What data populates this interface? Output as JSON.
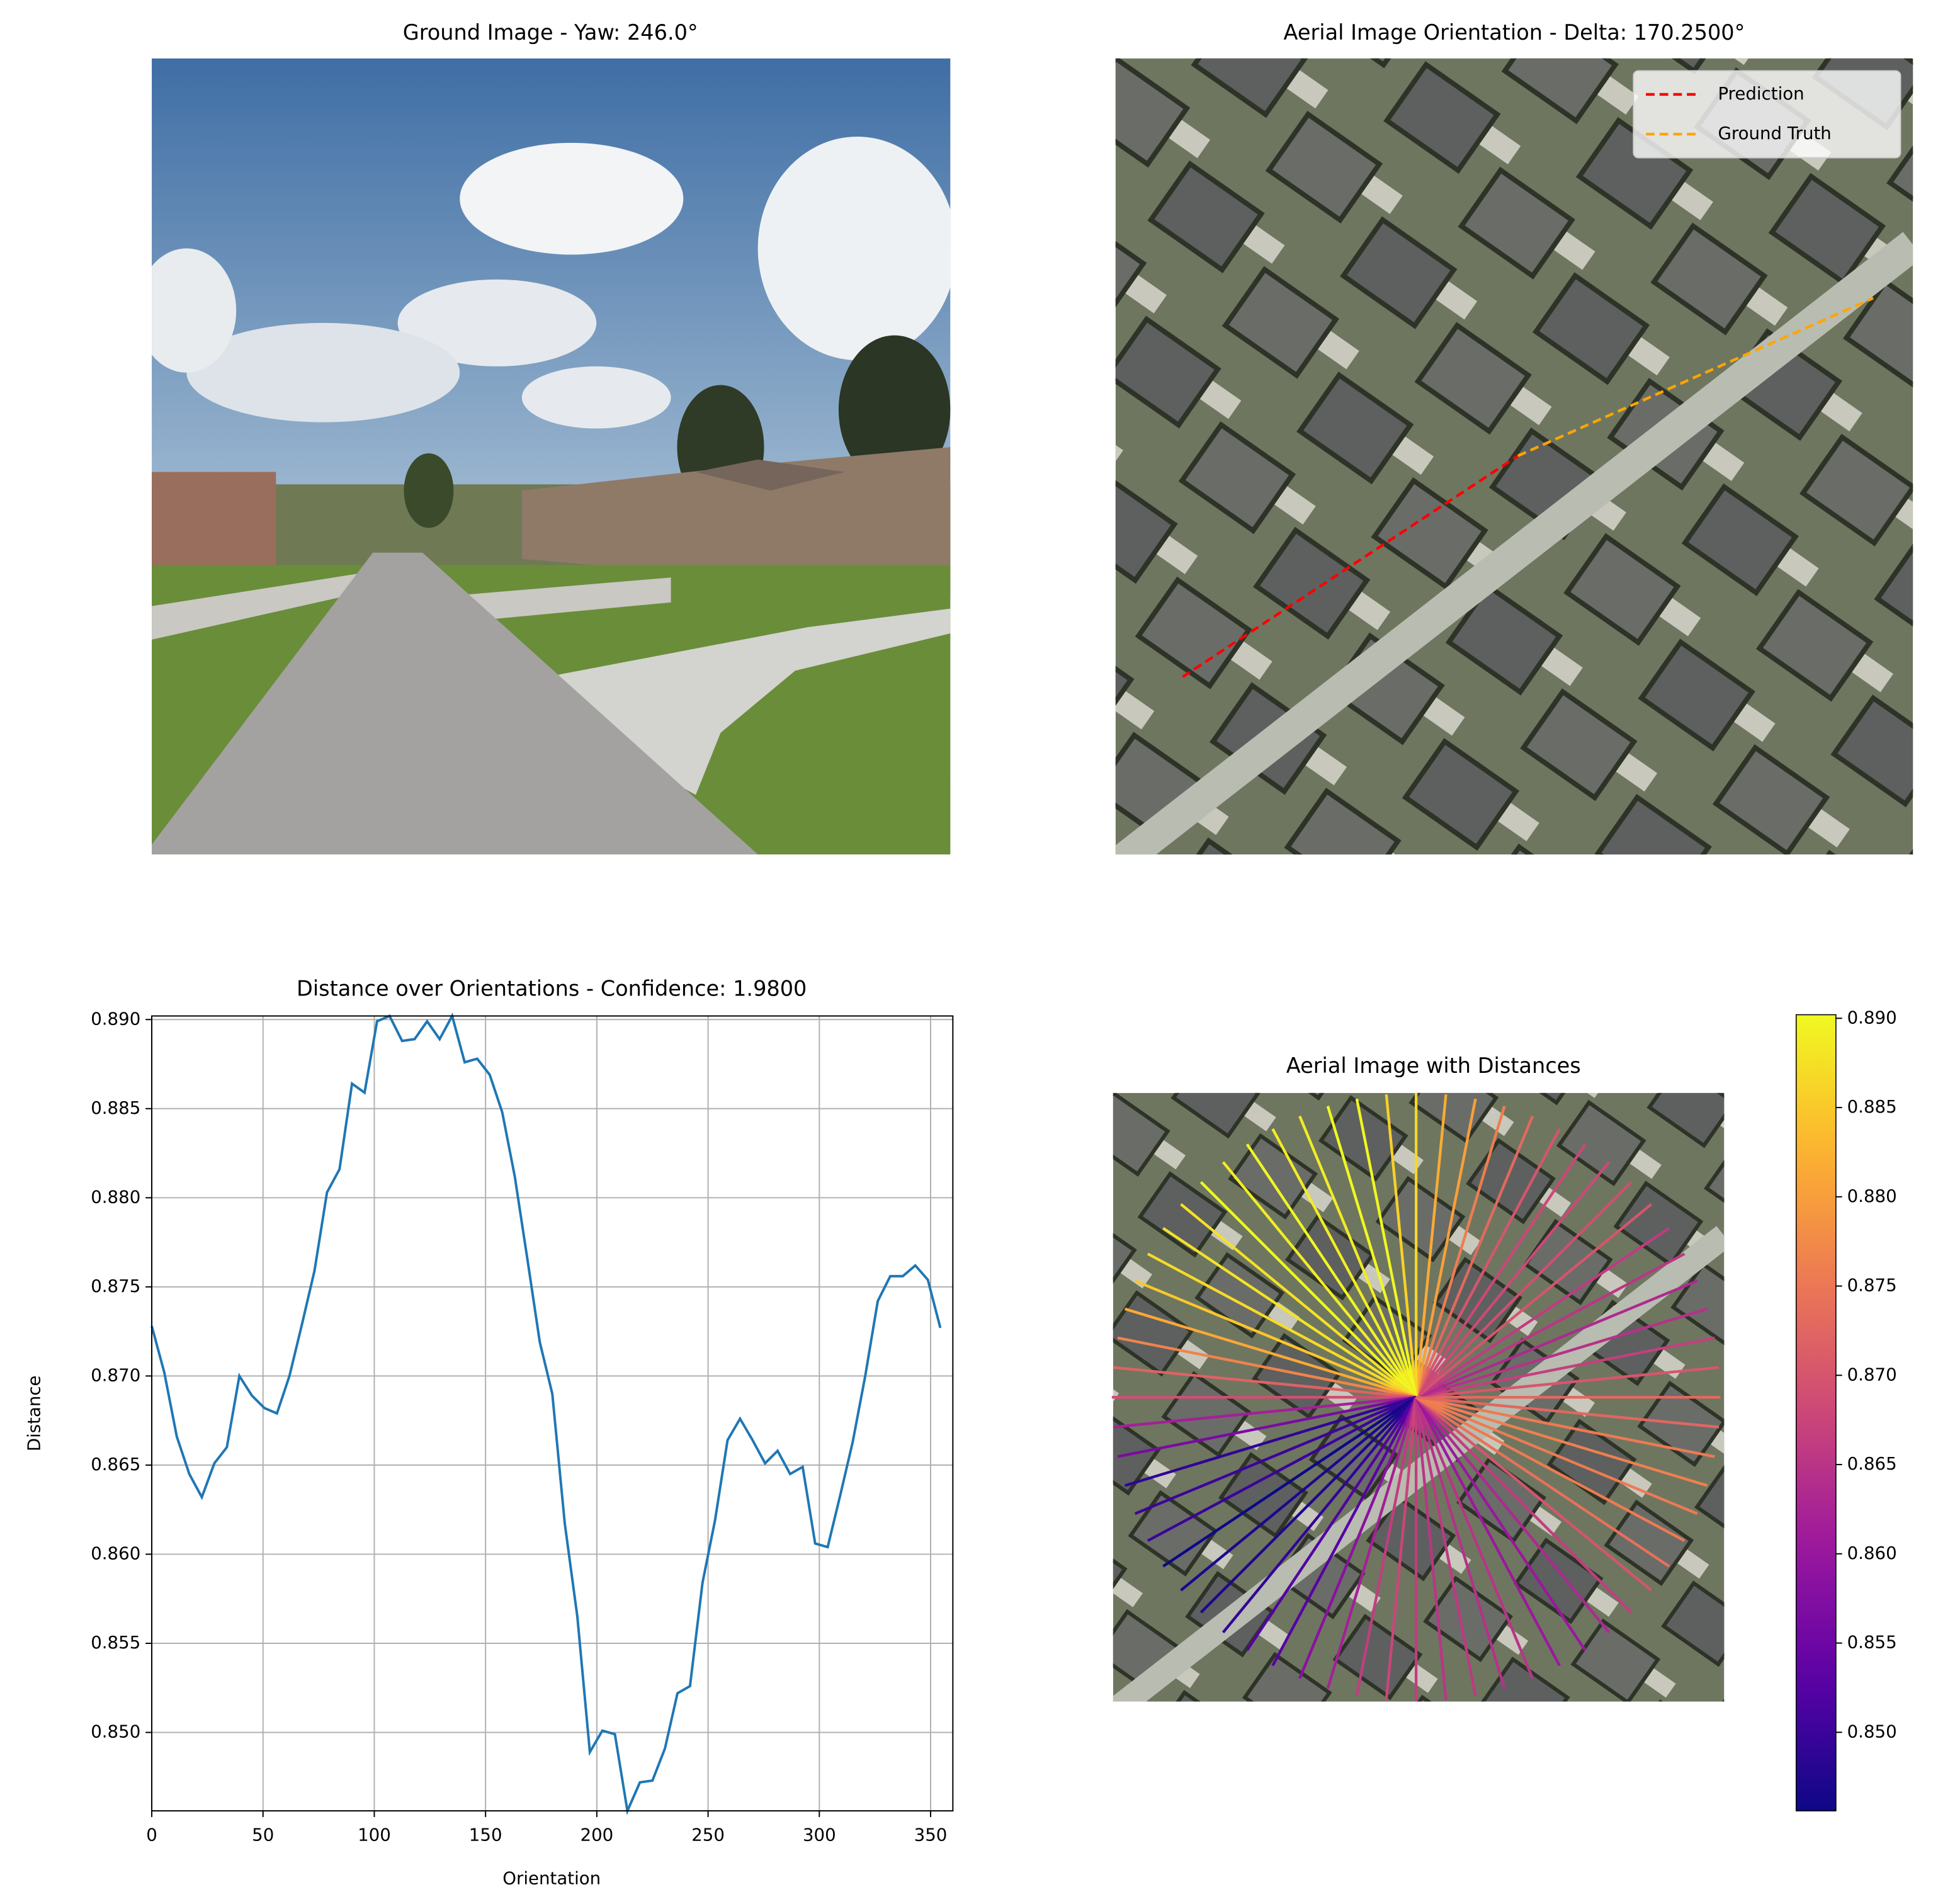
{
  "chart_data": [
    {
      "type": "image",
      "title": "Ground Image - Yaw: 246.0°"
    },
    {
      "type": "image",
      "title": "Aerial Image Orientation - Delta: 170.2500°",
      "legend": "upper right",
      "series": [
        {
          "name": "Prediction",
          "color": "#ff0000"
        },
        {
          "name": "Ground Truth",
          "color": "#ffa500"
        }
      ]
    },
    {
      "type": "line",
      "title": "Distance over Orientations - Confidence: 1.9800",
      "x_label": "Orientation",
      "y_label": "Distance",
      "color": "#1f77b4",
      "grid": true,
      "x": [
        0,
        5.625,
        11.25,
        16.875,
        22.5,
        28.125,
        33.75,
        39.375,
        45,
        50.625,
        56.25,
        61.875,
        67.5,
        73.125,
        78.75,
        84.375,
        90,
        95.625,
        101.25,
        106.875,
        112.5,
        118.125,
        123.75,
        129.375,
        135,
        140.625,
        146.25,
        151.875,
        157.5,
        163.125,
        168.75,
        174.375,
        180,
        185.625,
        191.25,
        196.875,
        202.5,
        208.125,
        213.75,
        219.375,
        225,
        230.625,
        236.25,
        241.875,
        247.5,
        253.125,
        258.75,
        264.375,
        270,
        275.625,
        281.25,
        286.875,
        292.5,
        298.125,
        303.75,
        309.375,
        315,
        320.625,
        326.25,
        331.875,
        337.5,
        343.125,
        348.75,
        354.375
      ],
      "values": [
        0.8728,
        0.8702,
        0.8666,
        0.8645,
        0.8632,
        0.8651,
        0.866,
        0.87,
        0.8689,
        0.8682,
        0.8679,
        0.87,
        0.8729,
        0.8759,
        0.8803,
        0.8816,
        0.8864,
        0.8859,
        0.8899,
        0.8902,
        0.8888,
        0.8889,
        0.8899,
        0.8889,
        0.8902,
        0.8876,
        0.8878,
        0.8869,
        0.8848,
        0.8812,
        0.8766,
        0.8719,
        0.869,
        0.8617,
        0.8565,
        0.8489,
        0.8501,
        0.8499,
        0.8456,
        0.8472,
        0.8473,
        0.8491,
        0.8522,
        0.8526,
        0.8584,
        0.8619,
        0.8664,
        0.8676,
        0.8664,
        0.8651,
        0.8658,
        0.8645,
        0.8649,
        0.8606,
        0.8604,
        0.8633,
        0.8663,
        0.87,
        0.8742,
        0.8756,
        0.8756,
        0.8762,
        0.8754,
        0.8727
      ],
      "xlim": [
        0,
        360
      ],
      "xticks": [
        0,
        50,
        100,
        150,
        200,
        250,
        300,
        350
      ],
      "ylim": [
        0.8456,
        0.8902
      ],
      "yticks": [
        {
          "value": 0.85,
          "label": "0.850"
        },
        {
          "value": 0.855,
          "label": "0.855"
        },
        {
          "value": 0.86,
          "label": "0.860"
        },
        {
          "value": 0.865,
          "label": "0.865"
        },
        {
          "value": 0.87,
          "label": "0.870"
        },
        {
          "value": 0.875,
          "label": "0.875"
        },
        {
          "value": 0.88,
          "label": "0.880"
        },
        {
          "value": 0.885,
          "label": "0.885"
        },
        {
          "value": 0.89,
          "label": "0.890"
        }
      ]
    },
    {
      "type": "radial",
      "title": "Aerial Image with Distances",
      "colormap": "plasma",
      "clim": [
        0.8456,
        0.8902
      ],
      "cticks": [
        {
          "value": 0.85,
          "label": "0.850"
        },
        {
          "value": 0.855,
          "label": "0.855"
        },
        {
          "value": 0.86,
          "label": "0.860"
        },
        {
          "value": 0.865,
          "label": "0.865"
        },
        {
          "value": 0.87,
          "label": "0.870"
        },
        {
          "value": 0.875,
          "label": "0.875"
        },
        {
          "value": 0.88,
          "label": "0.880"
        },
        {
          "value": 0.885,
          "label": "0.885"
        },
        {
          "value": 0.89,
          "label": "0.890"
        }
      ]
    }
  ]
}
